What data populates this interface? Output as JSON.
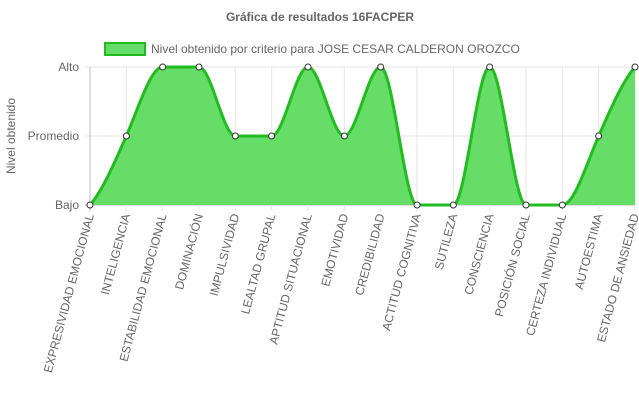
{
  "chart_data": {
    "type": "area",
    "title": "Gráfica de resultados 16FACPER",
    "ylabel": "Nivel obtenido",
    "xlabel": "",
    "y_tick_labels": [
      "Bajo",
      "Promedio",
      "Alto"
    ],
    "ylim": [
      0,
      2
    ],
    "legend_position": "top",
    "grid": true,
    "colors": {
      "fill": "#66dd66",
      "line": "#22bb22",
      "grid": "#e6e6e6",
      "point_fill": "#ffffff"
    },
    "categories": [
      "EXPRESIVIDAD EMOCIONAL",
      "INTELIGENCIA",
      "ESTABILIDAD EMOCIONAL",
      "DOMINACIÓN",
      "IMPULSIVIDAD",
      "LEALTAD GRUPAL",
      "APTITUD SITUACIONAL",
      "EMOTIVIDAD",
      "CREDIBILIDAD",
      "ACTITUD COGNITIVA",
      "SUTILEZA",
      "CONSCIENCIA",
      "POSICIÓN SOCIAL",
      "CERTEZA INDIVIDUAL",
      "AUTOESTIMA",
      "ESTADO DE ANSIEDAD"
    ],
    "series": [
      {
        "name": "Nivel obtenido por criterio para JOSE CESAR CALDERON OROZCO",
        "values": [
          0,
          1,
          2,
          2,
          1,
          1,
          2,
          1,
          2,
          0,
          0,
          2,
          0,
          0,
          1,
          2
        ]
      }
    ]
  }
}
